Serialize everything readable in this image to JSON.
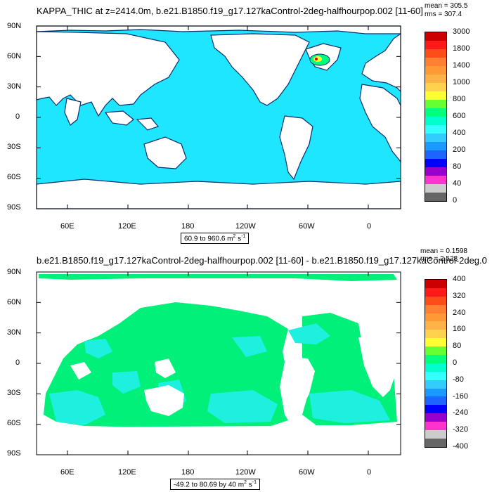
{
  "panels": [
    {
      "title": "KAPPA_THIC at z=2414.0m, b.e21.B1850.f19_g17.127kaControl-2deg-halfhourpop.002 [11-60]",
      "mean_text": "mean = 305.5",
      "rms_text": "rms = 307.4",
      "range_text": "60.9 to 960.6 m",
      "range_unit_sup": "2",
      "range_unit_tail": " s",
      "range_unit_sup2": "-1",
      "colorbar": {
        "colors": [
          "#cc0000",
          "#ff1a1a",
          "#ff4d1a",
          "#ff8033",
          "#ff9933",
          "#ffb347",
          "#ffd24d",
          "#ffff33",
          "#66ff33",
          "#00ff7f",
          "#00ffcc",
          "#33ffff",
          "#33ccff",
          "#1a99ff",
          "#1a66ff",
          "#0000ff",
          "#9900cc",
          "#ff33cc",
          "#cccccc",
          "#666666"
        ],
        "labels": [
          "3000",
          "1800",
          "1400",
          "1000",
          "800",
          "600",
          "400",
          "200",
          "80",
          "40",
          "0"
        ]
      }
    },
    {
      "title": "b.e21.B1850.f19_g17.127kaControl-2deg-halfhourpop.002 [11-60] - b.e21.B1850.f19_g17.127kaControl-2deg.0",
      "mean_text": "mean = 0.1598",
      "rms_text": "rms = 2.528",
      "range_text": "-49.2 to 80.69 by 40 m",
      "range_unit_sup": "2",
      "range_unit_tail": " s",
      "range_unit_sup2": "-1",
      "colorbar": {
        "colors": [
          "#cc0000",
          "#ff1a1a",
          "#ff4d1a",
          "#ff8033",
          "#ff9933",
          "#ffb347",
          "#ffd24d",
          "#ffff33",
          "#66ff33",
          "#00ff7f",
          "#00ffcc",
          "#33ffff",
          "#33ccff",
          "#1a99ff",
          "#1a66ff",
          "#0000ff",
          "#9900cc",
          "#ff33cc",
          "#cccccc",
          "#666666"
        ],
        "labels": [
          "400",
          "320",
          "240",
          "160",
          "80",
          "0",
          "-80",
          "-160",
          "-240",
          "-320",
          "-400"
        ]
      }
    }
  ],
  "lat_labels": [
    "90N",
    "60N",
    "30N",
    "0",
    "30S",
    "60S",
    "90S"
  ],
  "lon_labels": [
    "60E",
    "120E",
    "180",
    "120W",
    "60W",
    "0"
  ],
  "colors": {
    "ocean_top": "#1ee6ff",
    "ocean_bottom_green": "#00f07a",
    "ocean_bottom_cyan": "#1ef0e0",
    "land": "#ffffff",
    "coast_dark": "#0a2d6e"
  }
}
